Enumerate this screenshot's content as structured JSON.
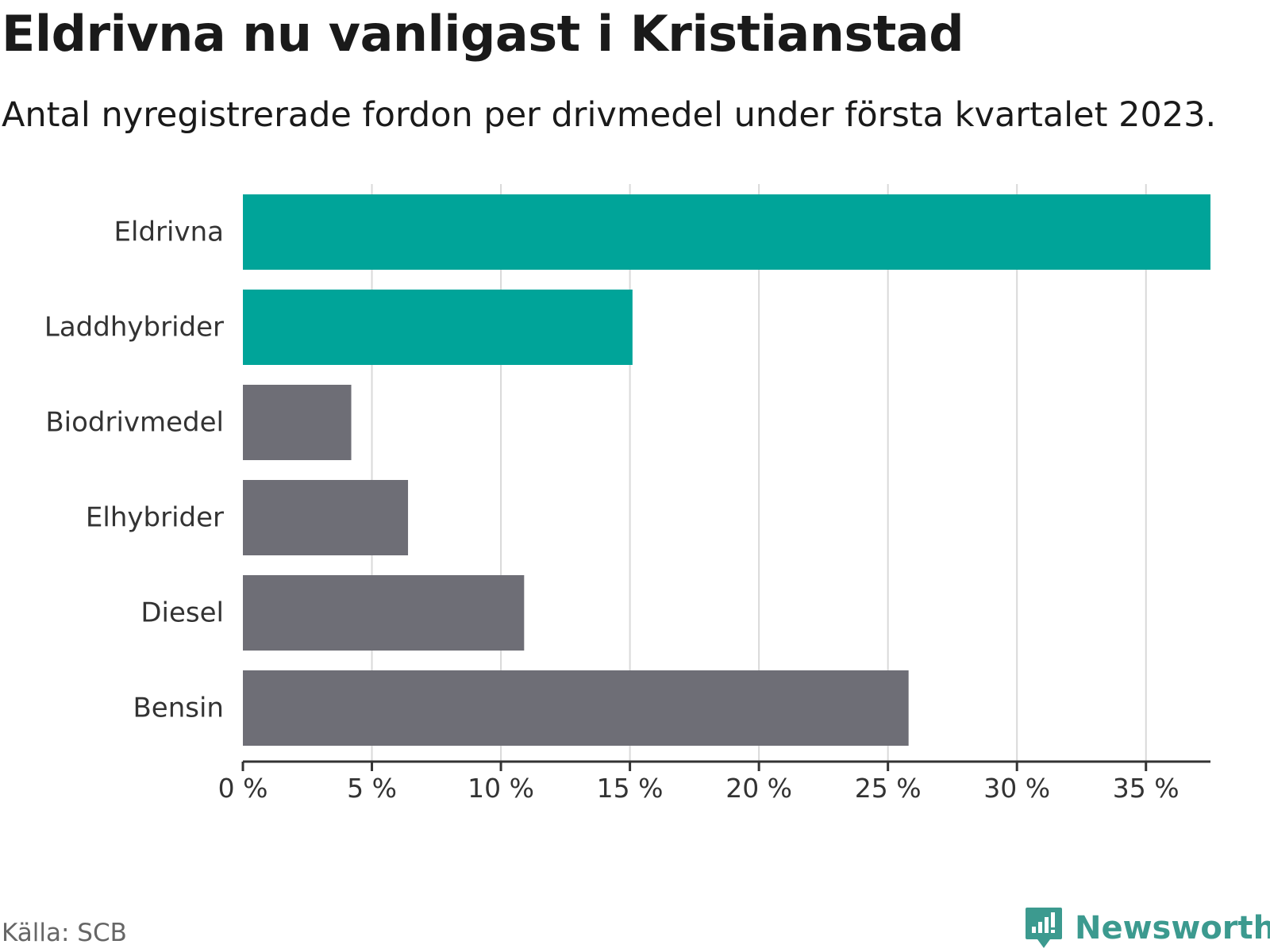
{
  "header": {
    "title": "Eldrivna nu vanligast i Kristianstad",
    "subtitle": "Antal nyregistrerade fordon per drivmedel under första kvartalet 2023."
  },
  "footer": {
    "source": "Källa: SCB",
    "brand": "Newsworthy",
    "brand_icon": "newsworthy-logo-icon"
  },
  "colors": {
    "highlight": "#00a499",
    "default": "#6e6e76",
    "grid": "#d9d9d9",
    "axis": "#333333",
    "brand": "#3c9a8f"
  },
  "chart_data": {
    "type": "bar",
    "orientation": "horizontal",
    "categories": [
      "Eldrivna",
      "Laddhybrider",
      "Biodrivmedel",
      "Elhybrider",
      "Diesel",
      "Bensin"
    ],
    "values": [
      37.5,
      15.1,
      4.2,
      6.4,
      10.9,
      25.8
    ],
    "highlighted": [
      true,
      true,
      false,
      false,
      false,
      false
    ],
    "unit": "%",
    "xlim": [
      0,
      37.5
    ],
    "ticks": [
      0,
      5,
      10,
      15,
      20,
      25,
      30,
      35
    ],
    "tick_labels": [
      "0 %",
      "5 %",
      "10 %",
      "15 %",
      "20 %",
      "25 %",
      "30 %",
      "35 %"
    ],
    "grid": true,
    "legend": "none"
  }
}
